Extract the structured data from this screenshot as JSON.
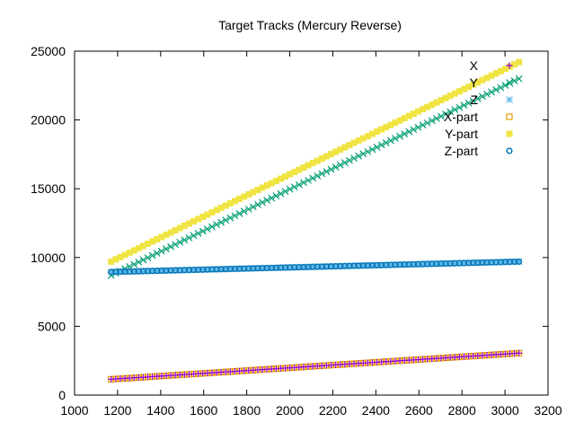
{
  "chart_data": {
    "type": "scatter",
    "title": "Target Tracks (Mercury Reverse)",
    "xlabel": "",
    "ylabel": "",
    "xlim": [
      1000,
      3200
    ],
    "ylim": [
      0,
      25000
    ],
    "x_ticks": [
      1000,
      1200,
      1400,
      1600,
      1800,
      2000,
      2200,
      2400,
      2600,
      2800,
      3000,
      3200
    ],
    "y_ticks": [
      0,
      5000,
      10000,
      15000,
      20000,
      25000
    ],
    "grid": false,
    "legend_position": "top-right",
    "series": [
      {
        "name": "X",
        "marker": "plus",
        "color": "#9400d3",
        "x_start": 1170,
        "x_end": 3065,
        "y_start": 1150,
        "y_end": 3050
      },
      {
        "name": "Y",
        "marker": "cross",
        "color": "#009e73",
        "x_start": 1170,
        "x_end": 3065,
        "y_start": 8700,
        "y_end": 23000
      },
      {
        "name": "Z",
        "marker": "asterisk",
        "color": "#56b4e9",
        "x_start": 1170,
        "x_end": 3065,
        "y_start": 8950,
        "y_end": 9700
      },
      {
        "name": "X-part",
        "marker": "open-square",
        "color": "#e69f00",
        "x_start": 1170,
        "x_end": 3065,
        "y_start": 1150,
        "y_end": 3050
      },
      {
        "name": "Y-part",
        "marker": "filled-square",
        "color": "#f0e442",
        "x_start": 1170,
        "x_end": 3065,
        "y_start": 9700,
        "y_end": 24200
      },
      {
        "name": "Z-part",
        "marker": "open-circle",
        "color": "#0072b2",
        "x_start": 1170,
        "x_end": 3065,
        "y_start": 8950,
        "y_end": 9700
      }
    ]
  }
}
